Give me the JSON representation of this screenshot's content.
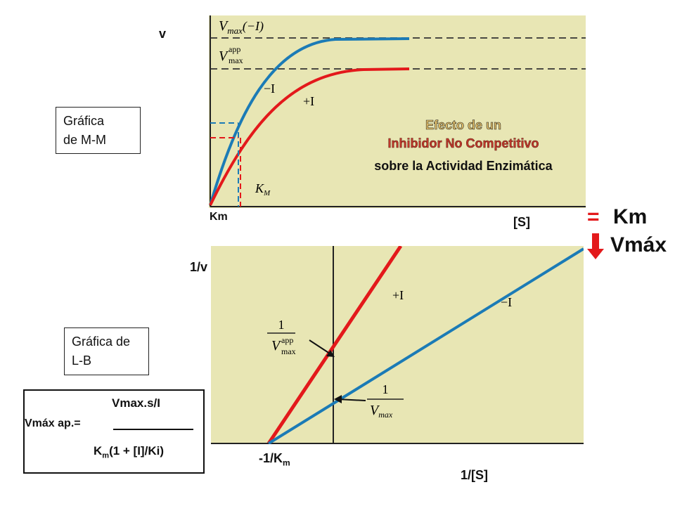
{
  "top_graph": {
    "y_label": "v",
    "x_label": "[S]",
    "km_label": "Km",
    "vmax_label": "V",
    "vmax_sub": "max",
    "vmax_paren": "(−I)",
    "vapp_label": "V",
    "vapp_sup": "app",
    "vapp_sub": "max",
    "curve_minus_label": "−I",
    "curve_plus_label": "+I",
    "km_axis_label": "K",
    "km_axis_sub": "M",
    "title_line1": "Efecto de un",
    "title_line2": "Inhibidor No Competitivo",
    "title_line3": "sobre la Actividad Enzimática",
    "box_label_1": "Gráfica",
    "box_label_2": "de M-M"
  },
  "bottom_graph": {
    "y_label": "1/v",
    "x_label": "1/[S]",
    "neg_km_label": "-1/K",
    "neg_km_sub": "m",
    "line_plus_label": "+I",
    "line_minus_label": "−I",
    "frac1_num": "1",
    "frac1_den": "V",
    "frac1_sup": "app",
    "frac1_sub": "max",
    "frac2_num": "1",
    "frac2_den": "V",
    "frac2_sub": "max",
    "box_label_1": "Gráfica de",
    "box_label_2": "L-B"
  },
  "effect": {
    "equals": "=",
    "km": "Km",
    "vmax": "Vmáx"
  },
  "formula": {
    "lhs": "Vmáx ap.=",
    "numerator": "Vmax.s/I",
    "denominator_k": "K",
    "denominator_sub": "m",
    "denominator_rest": "(1 + [I]/Ki)"
  },
  "colors": {
    "plot_bg": "#e8e6b4",
    "red_curve": "#e3191b",
    "blue_curve": "#1b7bb6",
    "title_red": "#c0392b",
    "effect_red": "#e3191b"
  }
}
